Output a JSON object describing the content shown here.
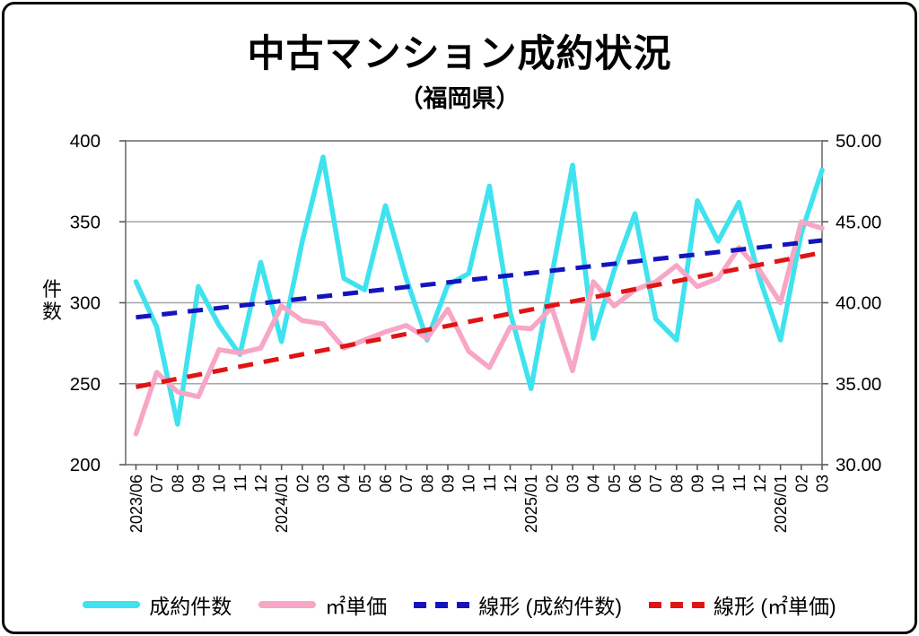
{
  "title": "中古マンション成約状況",
  "subtitle": "（福岡県）",
  "chart_data": {
    "type": "line",
    "title": "中古マンション成約状況",
    "subtitle": "（福岡県）",
    "grid": true,
    "legend_position": "bottom",
    "categories": [
      "2023/06",
      "07",
      "08",
      "09",
      "10",
      "11",
      "12",
      "2024/01",
      "02",
      "03",
      "04",
      "05",
      "06",
      "07",
      "08",
      "09",
      "10",
      "11",
      "12",
      "2025/01",
      "02",
      "03",
      "04",
      "05",
      "06",
      "07",
      "08",
      "09",
      "10",
      "11",
      "12",
      "2026/01",
      "02",
      "03"
    ],
    "left_axis": {
      "label": "件数",
      "min": 200,
      "max": 400,
      "ticks": [
        400,
        350,
        300,
        250,
        200
      ]
    },
    "right_axis": {
      "min": 30,
      "max": 50,
      "ticks": [
        "50.00",
        "45.00",
        "40.00",
        "35.00",
        "30.00"
      ]
    },
    "series": [
      {
        "name": "成約件数",
        "axis": "left",
        "style": "solid",
        "color": "#3fe2ef",
        "values": [
          313,
          285,
          225,
          310,
          286,
          268,
          325,
          276,
          338,
          390,
          315,
          308,
          360,
          315,
          277,
          311,
          318,
          372,
          294,
          247,
          317,
          385,
          278,
          320,
          355,
          290,
          277,
          363,
          338,
          362,
          315,
          277,
          343,
          382
        ]
      },
      {
        "name": "㎡単価",
        "axis": "right",
        "style": "solid",
        "color": "#f7a6c6",
        "values": [
          31.9,
          35.7,
          34.5,
          34.2,
          37.1,
          36.9,
          37.2,
          39.8,
          38.9,
          38.7,
          37.2,
          37.7,
          38.2,
          38.6,
          37.8,
          39.6,
          37.0,
          36.0,
          38.5,
          38.4,
          39.7,
          35.8,
          41.3,
          39.8,
          40.8,
          41.3,
          42.3,
          41.0,
          41.5,
          43.4,
          42.0,
          40.0,
          45.0,
          44.6
        ]
      },
      {
        "name": "線形 (成約件数)",
        "axis": "left",
        "style": "dashed",
        "color": "#1414bе",
        "trend": [
          291.0,
          338.5
        ]
      },
      {
        "name": "線形 (㎡単価)",
        "axis": "right",
        "style": "dashed",
        "color": "#e01414",
        "trend": [
          34.8,
          43.1
        ]
      }
    ],
    "colors": {
      "grid": "#a6a6a6",
      "frame": "#7f7f7f",
      "tick": "#595959",
      "series1": "#3fe2ef",
      "series2": "#f7a6c6",
      "trend1": "#1414be",
      "trend2": "#e01414"
    }
  }
}
